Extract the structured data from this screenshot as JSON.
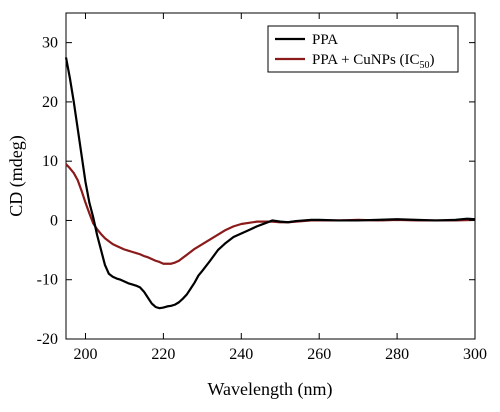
{
  "chart_data": {
    "type": "line",
    "xlabel": "Wavelength (nm)",
    "ylabel": "CD (mdeg)",
    "xlim": [
      195,
      300
    ],
    "ylim": [
      -20,
      35
    ],
    "xticks": [
      200,
      220,
      240,
      260,
      280,
      300
    ],
    "yticks": [
      -20,
      -10,
      0,
      10,
      20,
      30
    ],
    "grid": false,
    "legend_position": "top-right",
    "colors": {
      "PPA": "#000000",
      "PPA + CuNPs": "#8b1a1a"
    },
    "series": [
      {
        "name": "PPA",
        "legend_label": "PPA",
        "color": "#000000",
        "x": [
          195,
          196,
          197,
          198,
          199,
          200,
          201,
          202,
          203,
          204,
          205,
          206,
          207,
          208,
          209,
          210,
          211,
          212,
          213,
          214,
          215,
          216,
          217,
          218,
          219,
          220,
          221,
          222,
          223,
          224,
          225,
          226,
          227,
          228,
          229,
          230,
          232,
          234,
          236,
          238,
          240,
          242,
          244,
          246,
          248,
          250,
          252,
          254,
          256,
          258,
          260,
          265,
          270,
          275,
          280,
          285,
          290,
          295,
          298,
          300
        ],
        "y": [
          27.5,
          24,
          20,
          15.5,
          11,
          6.5,
          3,
          0.5,
          -2.5,
          -5,
          -7.5,
          -9,
          -9.5,
          -9.8,
          -10,
          -10.3,
          -10.6,
          -10.8,
          -11,
          -11.3,
          -12,
          -13,
          -14,
          -14.6,
          -14.8,
          -14.7,
          -14.5,
          -14.4,
          -14.2,
          -13.8,
          -13.2,
          -12.5,
          -11.5,
          -10.5,
          -9.3,
          -8.5,
          -6.8,
          -5,
          -3.8,
          -2.8,
          -2.2,
          -1.6,
          -1,
          -0.5,
          0,
          -0.2,
          -0.3,
          -0.1,
          0,
          0.1,
          0.1,
          0,
          0,
          0.1,
          0.2,
          0.1,
          0,
          0.1,
          0.3,
          0.2
        ]
      },
      {
        "name": "PPA + CuNPs (IC50)",
        "legend_label_main": "PPA + CuNPs (IC",
        "legend_label_sub": "50",
        "legend_label_end": ")",
        "color": "#8b1a1a",
        "x": [
          195,
          196,
          197,
          198,
          199,
          200,
          201,
          202,
          203,
          204,
          205,
          206,
          207,
          208,
          209,
          210,
          211,
          212,
          213,
          214,
          215,
          216,
          217,
          218,
          219,
          220,
          221,
          222,
          223,
          224,
          225,
          226,
          227,
          228,
          229,
          230,
          232,
          234,
          236,
          238,
          240,
          242,
          244,
          246,
          248,
          250,
          252,
          254,
          256,
          258,
          260,
          265,
          270,
          275,
          280,
          285,
          290,
          295,
          300
        ],
        "y": [
          9.5,
          8.8,
          8,
          6.8,
          5,
          3,
          1.2,
          -0.5,
          -1.5,
          -2.3,
          -3,
          -3.5,
          -4,
          -4.3,
          -4.6,
          -4.9,
          -5.1,
          -5.3,
          -5.5,
          -5.7,
          -6,
          -6.2,
          -6.5,
          -6.8,
          -7,
          -7.3,
          -7.3,
          -7.3,
          -7.1,
          -6.8,
          -6.3,
          -5.8,
          -5.3,
          -4.8,
          -4.4,
          -4,
          -3.2,
          -2.4,
          -1.6,
          -1,
          -0.6,
          -0.4,
          -0.2,
          -0.2,
          -0.2,
          -0.3,
          -0.3,
          -0.2,
          -0.1,
          0,
          0,
          0,
          0.1,
          0,
          0.1,
          0,
          0,
          0,
          0.1
        ]
      }
    ]
  }
}
